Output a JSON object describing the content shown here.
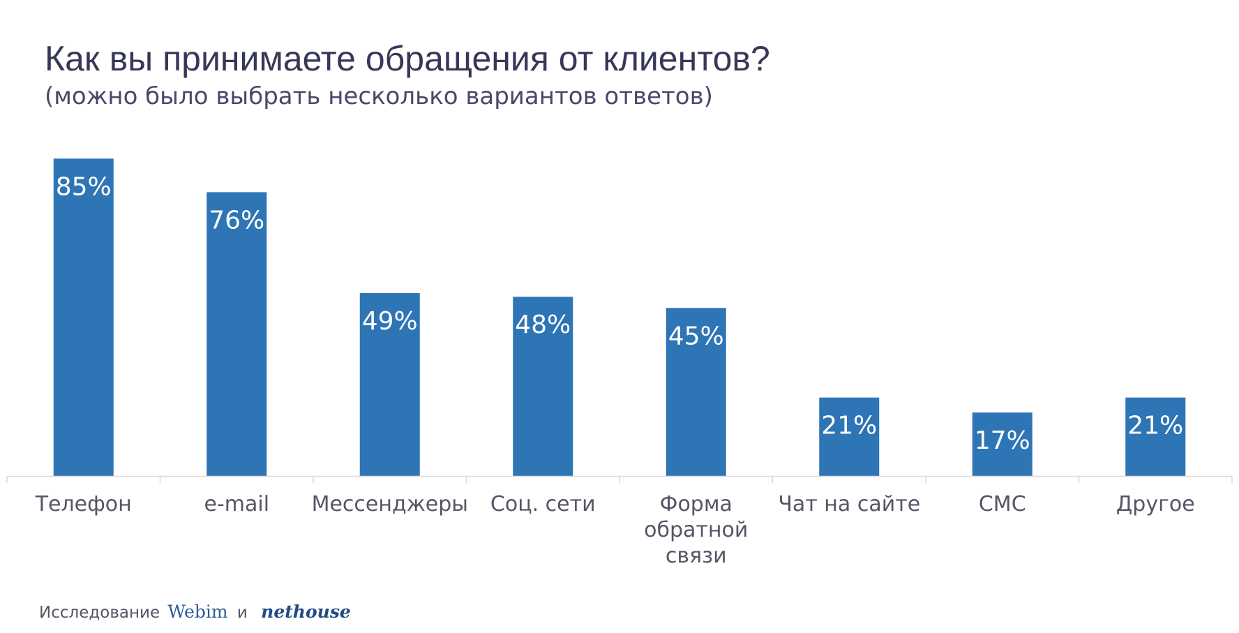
{
  "chart_data": {
    "type": "bar",
    "title": "Как вы принимаете обращения от клиентов?",
    "subtitle": "(можно было выбрать несколько вариантов ответов)",
    "categories": [
      [
        "Телефон"
      ],
      [
        "e-mail"
      ],
      [
        "Мессенджеры"
      ],
      [
        "Соц. сети"
      ],
      [
        "Форма",
        "обратной",
        "связи"
      ],
      [
        "Чат на сайте"
      ],
      [
        "СМС"
      ],
      [
        "Другое"
      ]
    ],
    "values": [
      85,
      76,
      49,
      48,
      45,
      21,
      17,
      21
    ],
    "data_labels": [
      "85%",
      "76%",
      "49%",
      "48%",
      "45%",
      "21%",
      "17%",
      "21%"
    ],
    "unit": "%",
    "ylim": [
      0,
      100
    ],
    "grid": false,
    "colors": {
      "bar": "#2e75b6",
      "label": "#ffffff",
      "axis": "#d9d9d9",
      "category_text": "#555566"
    }
  },
  "footer": {
    "prefix": "Исследование",
    "brand_1": "Webim",
    "conjunction": "и",
    "brand_2": "nethouse"
  }
}
